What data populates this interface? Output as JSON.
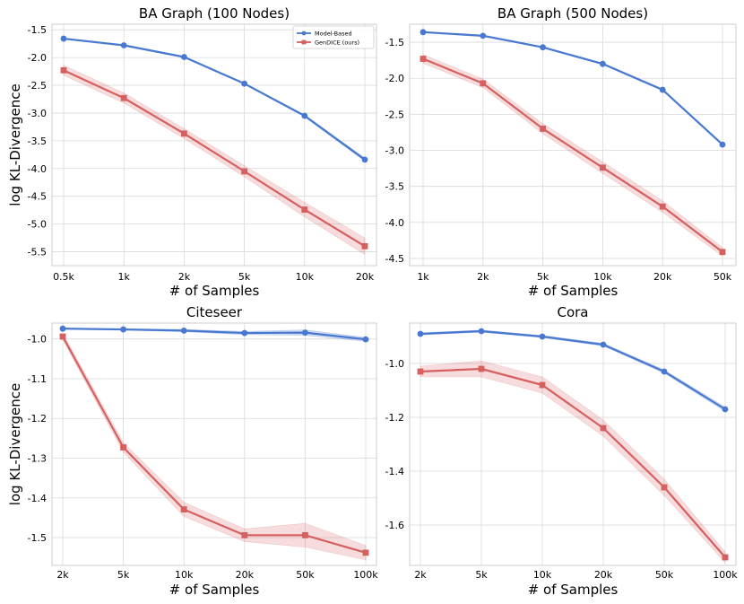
{
  "colors": {
    "model_based": "#4878CF",
    "gendice": "#D65F5F",
    "gendice_band": "#D65F5F"
  },
  "chart_data": [
    {
      "type": "line",
      "title": "BA Graph (100 Nodes)",
      "xlabel": "# of Samples",
      "ylabel": "log KL-Divergence",
      "categories": [
        "0.5k",
        "1k",
        "2k",
        "5k",
        "10k",
        "20k"
      ],
      "ylim": [
        -5.75,
        -1.4
      ],
      "yticks": [
        -1.5,
        -2.0,
        -2.5,
        -3.0,
        -3.5,
        -4.0,
        -4.5,
        -5.0,
        -5.5
      ],
      "ytick_labels": [
        "-1.5",
        "-2.0",
        "-2.5",
        "-3.0",
        "-3.5",
        "-4.0",
        "-4.5",
        "-5.0",
        "-5.5"
      ],
      "legend": {
        "position": "top-right",
        "entries": [
          "Model-Based",
          "GenDICE (ours)"
        ]
      },
      "series": [
        {
          "name": "Model-Based",
          "marker": "circle",
          "values": [
            -1.66,
            -1.78,
            -1.99,
            -2.47,
            -3.05,
            -3.84
          ],
          "band": [
            0.01,
            0.01,
            0.01,
            0.01,
            0.02,
            0.03
          ]
        },
        {
          "name": "GenDICE (ours)",
          "marker": "square",
          "values": [
            -2.23,
            -2.73,
            -3.37,
            -4.05,
            -4.74,
            -5.4
          ],
          "band": [
            0.09,
            0.09,
            0.09,
            0.1,
            0.13,
            0.15
          ]
        }
      ]
    },
    {
      "type": "line",
      "title": "BA Graph (500 Nodes)",
      "xlabel": "# of Samples",
      "ylabel": "",
      "categories": [
        "1k",
        "2k",
        "5k",
        "10k",
        "20k",
        "50k"
      ],
      "ylim": [
        -4.6,
        -1.25
      ],
      "yticks": [
        -1.5,
        -2.0,
        -2.5,
        -3.0,
        -3.5,
        -4.0,
        -4.5
      ],
      "ytick_labels": [
        "-1.5",
        "-2.0",
        "-2.5",
        "-3.0",
        "-3.5",
        "-4.0",
        "-4.5"
      ],
      "legend": null,
      "series": [
        {
          "name": "Model-Based",
          "marker": "circle",
          "values": [
            -1.36,
            -1.41,
            -1.57,
            -1.8,
            -2.16,
            -2.92
          ],
          "band": [
            0.01,
            0.01,
            0.01,
            0.01,
            0.01,
            0.01
          ]
        },
        {
          "name": "GenDICE (ours)",
          "marker": "square",
          "values": [
            -1.73,
            -2.07,
            -2.7,
            -3.24,
            -3.78,
            -4.41
          ],
          "band": [
            0.06,
            0.06,
            0.07,
            0.08,
            0.08,
            0.06
          ]
        }
      ]
    },
    {
      "type": "line",
      "title": "Citeseer",
      "xlabel": "# of Samples",
      "ylabel": "log KL-Divergence",
      "categories": [
        "2k",
        "5k",
        "10k",
        "20k",
        "50k",
        "100k"
      ],
      "ylim": [
        -1.57,
        -0.96
      ],
      "yticks": [
        -1.0,
        -1.1,
        -1.2,
        -1.3,
        -1.4,
        -1.5
      ],
      "ytick_labels": [
        "-1.0",
        "-1.1",
        "-1.2",
        "-1.3",
        "-1.4",
        "-1.5"
      ],
      "legend": null,
      "series": [
        {
          "name": "Model-Based",
          "marker": "circle",
          "values": [
            -0.974,
            -0.976,
            -0.979,
            -0.985,
            -0.984,
            -1.001
          ],
          "band": [
            0.002,
            0.002,
            0.003,
            0.004,
            0.007,
            0.005
          ]
        },
        {
          "name": "GenDICE (ours)",
          "marker": "square",
          "values": [
            -0.994,
            -1.273,
            -1.429,
            -1.494,
            -1.494,
            -1.538
          ],
          "band": [
            0.008,
            0.012,
            0.018,
            0.016,
            0.03,
            0.018
          ]
        }
      ]
    },
    {
      "type": "line",
      "title": "Cora",
      "xlabel": "# of Samples",
      "ylabel": "",
      "categories": [
        "2k",
        "5k",
        "10k",
        "20k",
        "50k",
        "100k"
      ],
      "ylim": [
        -1.75,
        -0.85
      ],
      "yticks": [
        -1.0,
        -1.2,
        -1.4,
        -1.6
      ],
      "ytick_labels": [
        "-1.0",
        "-1.2",
        "-1.4",
        "-1.6"
      ],
      "legend": null,
      "series": [
        {
          "name": "Model-Based",
          "marker": "circle",
          "values": [
            -0.89,
            -0.88,
            -0.9,
            -0.93,
            -1.03,
            -1.17
          ],
          "band": [
            0.004,
            0.004,
            0.004,
            0.005,
            0.006,
            0.008
          ]
        },
        {
          "name": "GenDICE (ours)",
          "marker": "square",
          "values": [
            -1.03,
            -1.02,
            -1.08,
            -1.24,
            -1.46,
            -1.72
          ],
          "band": [
            0.02,
            0.03,
            0.03,
            0.03,
            0.03,
            0.02
          ]
        }
      ]
    }
  ]
}
